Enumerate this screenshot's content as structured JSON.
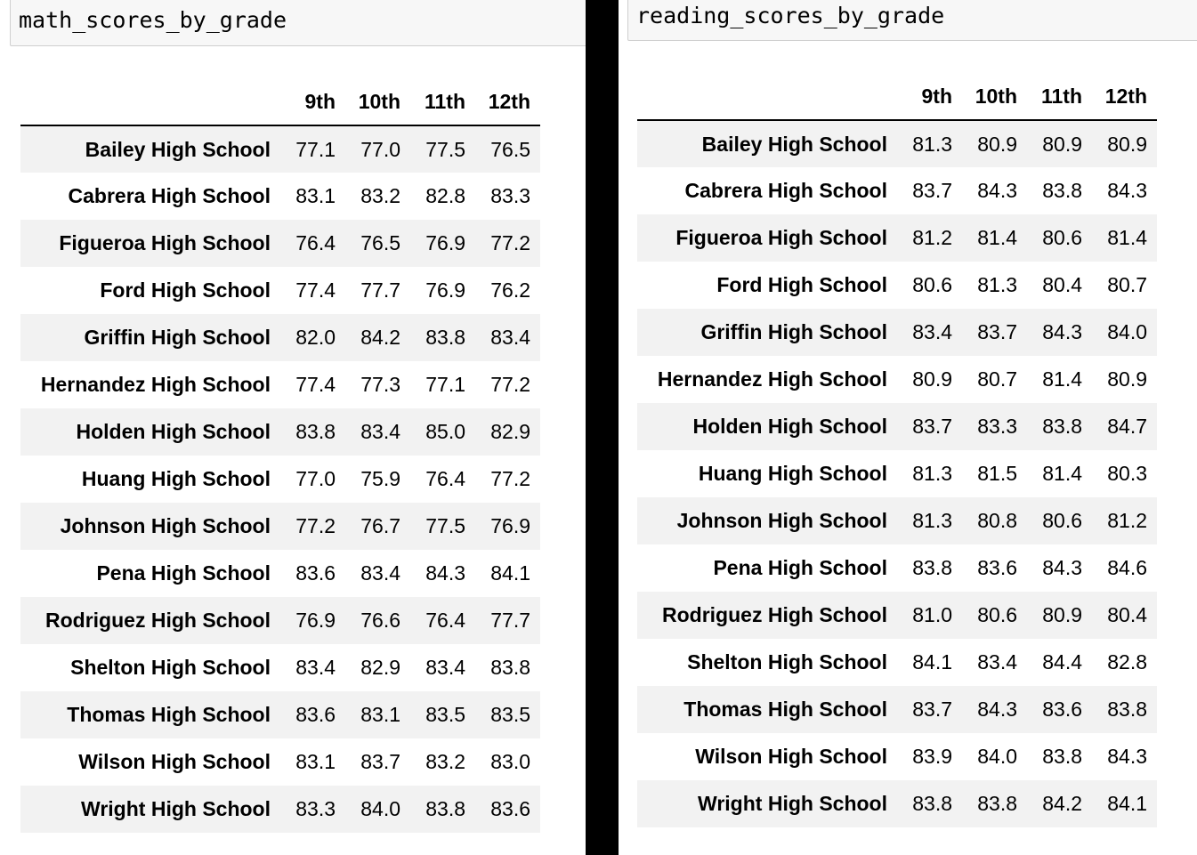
{
  "columns": [
    "9th",
    "10th",
    "11th",
    "12th"
  ],
  "math": {
    "variable": "math_scores_by_grade",
    "rows": [
      {
        "school": "Bailey High School",
        "values": [
          "77.1",
          "77.0",
          "77.5",
          "76.5"
        ]
      },
      {
        "school": "Cabrera High School",
        "values": [
          "83.1",
          "83.2",
          "82.8",
          "83.3"
        ]
      },
      {
        "school": "Figueroa High School",
        "values": [
          "76.4",
          "76.5",
          "76.9",
          "77.2"
        ]
      },
      {
        "school": "Ford High School",
        "values": [
          "77.4",
          "77.7",
          "76.9",
          "76.2"
        ]
      },
      {
        "school": "Griffin High School",
        "values": [
          "82.0",
          "84.2",
          "83.8",
          "83.4"
        ]
      },
      {
        "school": "Hernandez High School",
        "values": [
          "77.4",
          "77.3",
          "77.1",
          "77.2"
        ]
      },
      {
        "school": "Holden High School",
        "values": [
          "83.8",
          "83.4",
          "85.0",
          "82.9"
        ]
      },
      {
        "school": "Huang High School",
        "values": [
          "77.0",
          "75.9",
          "76.4",
          "77.2"
        ]
      },
      {
        "school": "Johnson High School",
        "values": [
          "77.2",
          "76.7",
          "77.5",
          "76.9"
        ]
      },
      {
        "school": "Pena High School",
        "values": [
          "83.6",
          "83.4",
          "84.3",
          "84.1"
        ]
      },
      {
        "school": "Rodriguez High School",
        "values": [
          "76.9",
          "76.6",
          "76.4",
          "77.7"
        ]
      },
      {
        "school": "Shelton High School",
        "values": [
          "83.4",
          "82.9",
          "83.4",
          "83.8"
        ]
      },
      {
        "school": "Thomas High School",
        "values": [
          "83.6",
          "83.1",
          "83.5",
          "83.5"
        ]
      },
      {
        "school": "Wilson High School",
        "values": [
          "83.1",
          "83.7",
          "83.2",
          "83.0"
        ]
      },
      {
        "school": "Wright High School",
        "values": [
          "83.3",
          "84.0",
          "83.8",
          "83.6"
        ]
      }
    ]
  },
  "reading": {
    "variable": "reading_scores_by_grade",
    "rows": [
      {
        "school": "Bailey High School",
        "values": [
          "81.3",
          "80.9",
          "80.9",
          "80.9"
        ]
      },
      {
        "school": "Cabrera High School",
        "values": [
          "83.7",
          "84.3",
          "83.8",
          "84.3"
        ]
      },
      {
        "school": "Figueroa High School",
        "values": [
          "81.2",
          "81.4",
          "80.6",
          "81.4"
        ]
      },
      {
        "school": "Ford High School",
        "values": [
          "80.6",
          "81.3",
          "80.4",
          "80.7"
        ]
      },
      {
        "school": "Griffin High School",
        "values": [
          "83.4",
          "83.7",
          "84.3",
          "84.0"
        ]
      },
      {
        "school": "Hernandez High School",
        "values": [
          "80.9",
          "80.7",
          "81.4",
          "80.9"
        ]
      },
      {
        "school": "Holden High School",
        "values": [
          "83.7",
          "83.3",
          "83.8",
          "84.7"
        ]
      },
      {
        "school": "Huang High School",
        "values": [
          "81.3",
          "81.5",
          "81.4",
          "80.3"
        ]
      },
      {
        "school": "Johnson High School",
        "values": [
          "81.3",
          "80.8",
          "80.6",
          "81.2"
        ]
      },
      {
        "school": "Pena High School",
        "values": [
          "83.8",
          "83.6",
          "84.3",
          "84.6"
        ]
      },
      {
        "school": "Rodriguez High School",
        "values": [
          "81.0",
          "80.6",
          "80.9",
          "80.4"
        ]
      },
      {
        "school": "Shelton High School",
        "values": [
          "84.1",
          "83.4",
          "84.4",
          "82.8"
        ]
      },
      {
        "school": "Thomas High School",
        "values": [
          "83.7",
          "84.3",
          "83.6",
          "83.8"
        ]
      },
      {
        "school": "Wilson High School",
        "values": [
          "83.9",
          "84.0",
          "83.8",
          "84.3"
        ]
      },
      {
        "school": "Wright High School",
        "values": [
          "83.8",
          "83.8",
          "84.2",
          "84.1"
        ]
      }
    ]
  }
}
